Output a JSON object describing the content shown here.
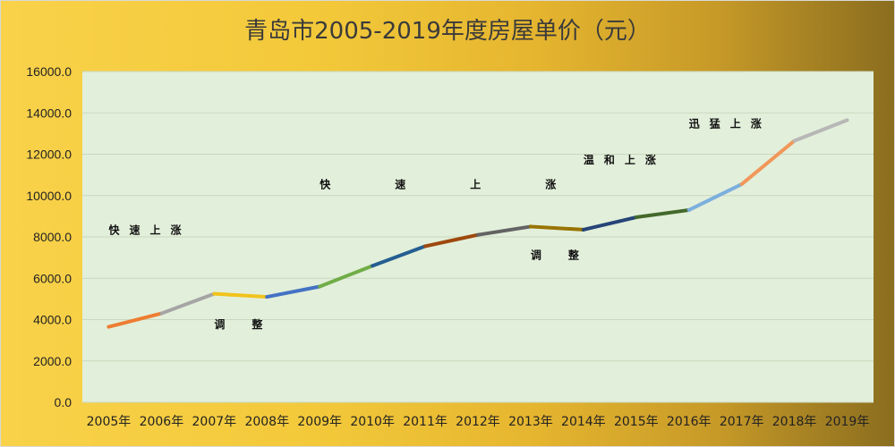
{
  "chart_data": {
    "type": "line",
    "title": "青岛市2005-2019年度房屋单价（元）",
    "xlabel": "",
    "ylabel": "",
    "ylim": [
      0,
      16000
    ],
    "y_ticks": [
      "0.0",
      "2000.0",
      "4000.0",
      "6000.0",
      "8000.0",
      "10000.0",
      "12000.0",
      "14000.0",
      "16000.0"
    ],
    "categories": [
      "2005年",
      "2006年",
      "2007年",
      "2008年",
      "2009年",
      "2010年",
      "2011年",
      "2012年",
      "2013年",
      "2014年",
      "2015年",
      "2016年",
      "2017年",
      "2018年",
      "2019年"
    ],
    "values": [
      3650,
      4300,
      5250,
      5100,
      5600,
      6600,
      7550,
      8100,
      8500,
      8350,
      8950,
      9300,
      10550,
      12650,
      13650
    ],
    "segment_colors": [
      "#ed7d31",
      "#a5a5a5",
      "#f2c31c",
      "#4472c4",
      "#70ad47",
      "#255e91",
      "#9e480e",
      "#636363",
      "#997300",
      "#264478",
      "#43682b",
      "#7cafdd",
      "#f1975a",
      "#b7b7b7"
    ],
    "grid": true,
    "annotations": [
      {
        "text": "快速上涨",
        "year": "2005年",
        "value": 8150
      },
      {
        "text": "调整",
        "year": "2007年",
        "value": 3600
      },
      {
        "text": "快速上涨",
        "year": "2009年",
        "value": 10350
      },
      {
        "text": "调整",
        "year": "2013年",
        "value": 6950
      },
      {
        "text": "温和上涨",
        "year": "2014年",
        "value": 11550
      },
      {
        "text": "迅猛上涨",
        "year": "2016年",
        "value": 13300
      }
    ]
  }
}
